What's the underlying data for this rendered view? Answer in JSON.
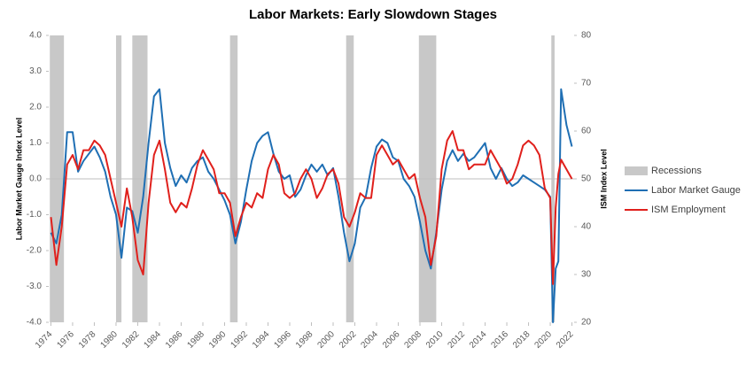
{
  "chart_data": {
    "type": "line",
    "title": "Labor Markets: Early Slowdown Stages",
    "y_label": "Labor Market Gauge Index Level",
    "y2_label": "ISM Index Level",
    "recession_label": "Recessions",
    "recession_color": "#c8c8c8",
    "recessions": [
      [
        1973.9,
        1975.2
      ],
      [
        1980.0,
        1980.5
      ],
      [
        1981.5,
        1982.9
      ],
      [
        1990.5,
        1991.2
      ],
      [
        2001.2,
        2001.9
      ],
      [
        2007.9,
        2009.5
      ],
      [
        2020.1,
        2020.4
      ]
    ],
    "xlim": [
      1973.8,
      2022.2
    ],
    "xticks": [
      1974,
      1976,
      1978,
      1980,
      1982,
      1984,
      1986,
      1988,
      1990,
      1992,
      1994,
      1996,
      1998,
      2000,
      2002,
      2004,
      2006,
      2008,
      2010,
      2012,
      2014,
      2016,
      2018,
      2020,
      2022
    ],
    "ylim": [
      -4,
      4
    ],
    "yticks": [
      {
        "value": -4,
        "label": "-4.0"
      },
      {
        "value": -3,
        "label": "-3.0"
      },
      {
        "value": -2,
        "label": "-2.0"
      },
      {
        "value": -1,
        "label": "-1.0"
      },
      {
        "value": 0,
        "label": "0.0"
      },
      {
        "value": 1,
        "label": "1.0"
      },
      {
        "value": 2,
        "label": "2.0"
      },
      {
        "value": 3,
        "label": "3.0"
      },
      {
        "value": 4,
        "label": "4.0"
      }
    ],
    "y2lim": [
      20,
      80
    ],
    "y2ticks": [
      20,
      30,
      40,
      50,
      60,
      70,
      80
    ],
    "x": [
      1974.0,
      1974.5,
      1975.0,
      1975.5,
      1976.0,
      1976.5,
      1977.0,
      1977.5,
      1978.0,
      1978.5,
      1979.0,
      1979.5,
      1980.0,
      1980.5,
      1981.0,
      1981.5,
      1982.0,
      1982.5,
      1983.0,
      1983.5,
      1984.0,
      1984.5,
      1985.0,
      1985.5,
      1986.0,
      1986.5,
      1987.0,
      1987.5,
      1988.0,
      1988.5,
      1989.0,
      1989.5,
      1990.0,
      1990.5,
      1991.0,
      1991.5,
      1992.0,
      1992.5,
      1993.0,
      1993.5,
      1994.0,
      1994.5,
      1995.0,
      1995.5,
      1996.0,
      1996.5,
      1997.0,
      1997.5,
      1998.0,
      1998.5,
      1999.0,
      1999.5,
      2000.0,
      2000.5,
      2001.0,
      2001.5,
      2002.0,
      2002.5,
      2003.0,
      2003.5,
      2004.0,
      2004.5,
      2005.0,
      2005.5,
      2006.0,
      2006.5,
      2007.0,
      2007.5,
      2008.0,
      2008.5,
      2009.0,
      2009.5,
      2010.0,
      2010.5,
      2011.0,
      2011.5,
      2012.0,
      2012.5,
      2013.0,
      2013.5,
      2014.0,
      2014.5,
      2015.0,
      2015.5,
      2016.0,
      2016.5,
      2017.0,
      2017.5,
      2018.0,
      2018.5,
      2019.0,
      2019.5,
      2020.0,
      2020.25,
      2020.5,
      2020.75,
      2021.0,
      2021.5,
      2022.0
    ],
    "series": [
      {
        "name": "Labor Market Gauge",
        "color": "#1f6fb4",
        "values": [
          -1.5,
          -1.8,
          -1.0,
          1.3,
          1.3,
          0.2,
          0.5,
          0.7,
          0.9,
          0.6,
          0.2,
          -0.5,
          -1.0,
          -2.2,
          -0.8,
          -0.9,
          -1.5,
          -0.5,
          1.0,
          2.3,
          2.5,
          1.0,
          0.3,
          -0.2,
          0.1,
          -0.1,
          0.3,
          0.5,
          0.6,
          0.2,
          0.0,
          -0.3,
          -0.6,
          -1.0,
          -1.8,
          -1.2,
          -0.3,
          0.5,
          1.0,
          1.2,
          1.3,
          0.7,
          0.2,
          0.0,
          0.1,
          -0.5,
          -0.3,
          0.1,
          0.4,
          0.2,
          0.4,
          0.1,
          0.3,
          -0.5,
          -1.5,
          -2.3,
          -1.8,
          -0.8,
          -0.5,
          0.3,
          0.9,
          1.1,
          1.0,
          0.6,
          0.5,
          0.0,
          -0.2,
          -0.5,
          -1.2,
          -2.0,
          -2.5,
          -1.5,
          -0.3,
          0.5,
          0.8,
          0.5,
          0.7,
          0.5,
          0.6,
          0.8,
          1.0,
          0.3,
          0.0,
          0.3,
          0.0,
          -0.2,
          -0.1,
          0.1,
          0.0,
          -0.1,
          -0.2,
          -0.3,
          -0.5,
          -4.0,
          -2.5,
          -2.3,
          2.5,
          1.5,
          0.9
        ]
      },
      {
        "name": "ISM Employment",
        "color": "#e0201c",
        "axis": "y2",
        "values": [
          42,
          32,
          40,
          53,
          55,
          52,
          56,
          56,
          58,
          57,
          55,
          50,
          45,
          40,
          48,
          42,
          33,
          30,
          45,
          55,
          58,
          52,
          45,
          43,
          45,
          44,
          48,
          53,
          56,
          54,
          52,
          47,
          47,
          45,
          38,
          42,
          45,
          44,
          47,
          46,
          52,
          55,
          53,
          47,
          46,
          47,
          50,
          52,
          50,
          46,
          48,
          51,
          52,
          49,
          42,
          40,
          43,
          47,
          46,
          46,
          55,
          57,
          55,
          53,
          54,
          52,
          50,
          51,
          46,
          42,
          32,
          38,
          52,
          58,
          60,
          56,
          56,
          52,
          53,
          53,
          53,
          56,
          54,
          52,
          49,
          50,
          53,
          57,
          58,
          57,
          55,
          48,
          46,
          28,
          44,
          51,
          54,
          52,
          50
        ]
      }
    ]
  }
}
